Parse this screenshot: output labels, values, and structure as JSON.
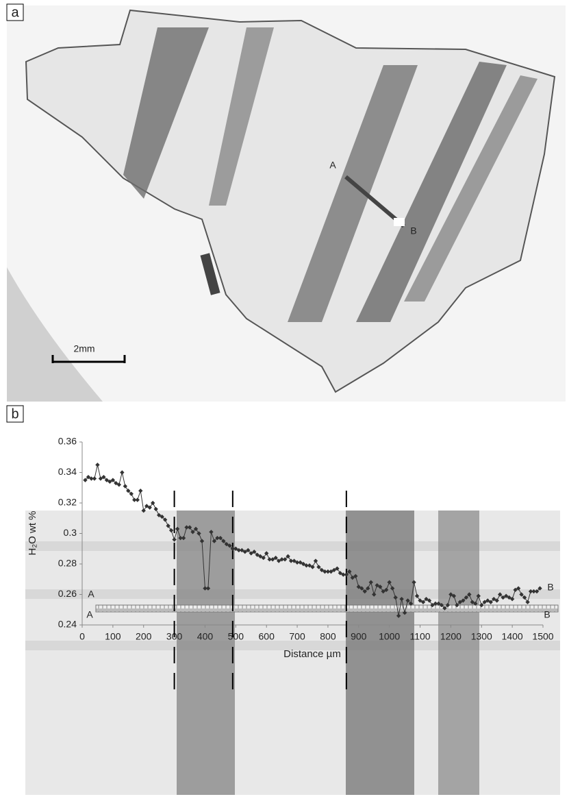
{
  "photo_a": {
    "panel_label": "a",
    "point_a": "A",
    "point_b": "B",
    "scale_bar": "2mm"
  },
  "chart_data": {
    "type": "line",
    "panel_label": "b",
    "x_label": "Distance µm",
    "y_label": "H₂O wt %",
    "annotations": [
      "A",
      "B"
    ],
    "color": "#333333",
    "x": [
      10,
      20,
      30,
      40,
      50,
      60,
      70,
      80,
      90,
      100,
      110,
      120,
      130,
      140,
      150,
      160,
      170,
      180,
      190,
      200,
      210,
      220,
      230,
      240,
      250,
      260,
      270,
      280,
      290,
      300,
      310,
      320,
      330,
      340,
      350,
      360,
      370,
      380,
      390,
      400,
      410,
      420,
      430,
      440,
      450,
      460,
      470,
      480,
      490,
      500,
      510,
      520,
      530,
      540,
      550,
      560,
      570,
      580,
      590,
      600,
      610,
      620,
      630,
      640,
      650,
      660,
      670,
      680,
      690,
      700,
      710,
      720,
      730,
      740,
      750,
      760,
      770,
      780,
      790,
      800,
      810,
      820,
      830,
      840,
      850,
      860,
      870,
      880,
      890,
      900,
      910,
      920,
      930,
      940,
      950,
      960,
      970,
      980,
      990,
      1000,
      1010,
      1020,
      1030,
      1040,
      1050,
      1060,
      1070,
      1080,
      1090,
      1100,
      1110,
      1120,
      1130,
      1140,
      1150,
      1160,
      1170,
      1180,
      1190,
      1200,
      1210,
      1220,
      1230,
      1240,
      1250,
      1260,
      1270,
      1280,
      1290,
      1300,
      1310,
      1320,
      1330,
      1340,
      1350,
      1360,
      1370,
      1380,
      1390,
      1400,
      1410,
      1420,
      1430,
      1440,
      1450,
      1460,
      1470,
      1480,
      1490
    ],
    "values": [
      0.335,
      0.337,
      0.336,
      0.336,
      0.345,
      0.336,
      0.337,
      0.335,
      0.334,
      0.335,
      0.333,
      0.332,
      0.34,
      0.331,
      0.328,
      0.326,
      0.322,
      0.322,
      0.328,
      0.315,
      0.318,
      0.317,
      0.32,
      0.316,
      0.312,
      0.311,
      0.309,
      0.305,
      0.302,
      0.296,
      0.303,
      0.297,
      0.297,
      0.304,
      0.304,
      0.301,
      0.303,
      0.3,
      0.295,
      0.264,
      0.264,
      0.301,
      0.295,
      0.297,
      0.297,
      0.295,
      0.293,
      0.292,
      0.29,
      0.29,
      0.289,
      0.289,
      0.288,
      0.289,
      0.287,
      0.288,
      0.286,
      0.285,
      0.284,
      0.287,
      0.283,
      0.283,
      0.284,
      0.282,
      0.283,
      0.283,
      0.285,
      0.282,
      0.282,
      0.281,
      0.281,
      0.28,
      0.279,
      0.279,
      0.278,
      0.282,
      0.278,
      0.276,
      0.275,
      0.275,
      0.275,
      0.276,
      0.277,
      0.274,
      0.273,
      0.273,
      0.275,
      0.271,
      0.272,
      0.265,
      0.264,
      0.262,
      0.264,
      0.268,
      0.26,
      0.266,
      0.265,
      0.262,
      0.263,
      0.268,
      0.264,
      0.258,
      0.246,
      0.257,
      0.248,
      0.256,
      0.254,
      0.268,
      0.259,
      0.256,
      0.255,
      0.257,
      0.256,
      0.253,
      0.254,
      0.254,
      0.253,
      0.251,
      0.253,
      0.26,
      0.259,
      0.253,
      0.255,
      0.256,
      0.258,
      0.26,
      0.255,
      0.254,
      0.259,
      0.253,
      0.255,
      0.256,
      0.255,
      0.257,
      0.256,
      0.26,
      0.258,
      0.259,
      0.258,
      0.257,
      0.263,
      0.264,
      0.26,
      0.258,
      0.255,
      0.262,
      0.262,
      0.262,
      0.264
    ],
    "dividers": [
      300,
      490,
      860
    ],
    "xlim": [
      0,
      1500
    ],
    "xticks": [
      0,
      100,
      200,
      300,
      400,
      500,
      600,
      700,
      800,
      900,
      1000,
      1100,
      1200,
      1300,
      1400,
      1500
    ],
    "ylim": [
      0.24,
      0.36
    ],
    "yticks": [
      0.24,
      0.26,
      0.28,
      0.3,
      0.32,
      0.34,
      0.36
    ]
  },
  "photo_b": {
    "point_a": "A",
    "point_b": "B"
  }
}
